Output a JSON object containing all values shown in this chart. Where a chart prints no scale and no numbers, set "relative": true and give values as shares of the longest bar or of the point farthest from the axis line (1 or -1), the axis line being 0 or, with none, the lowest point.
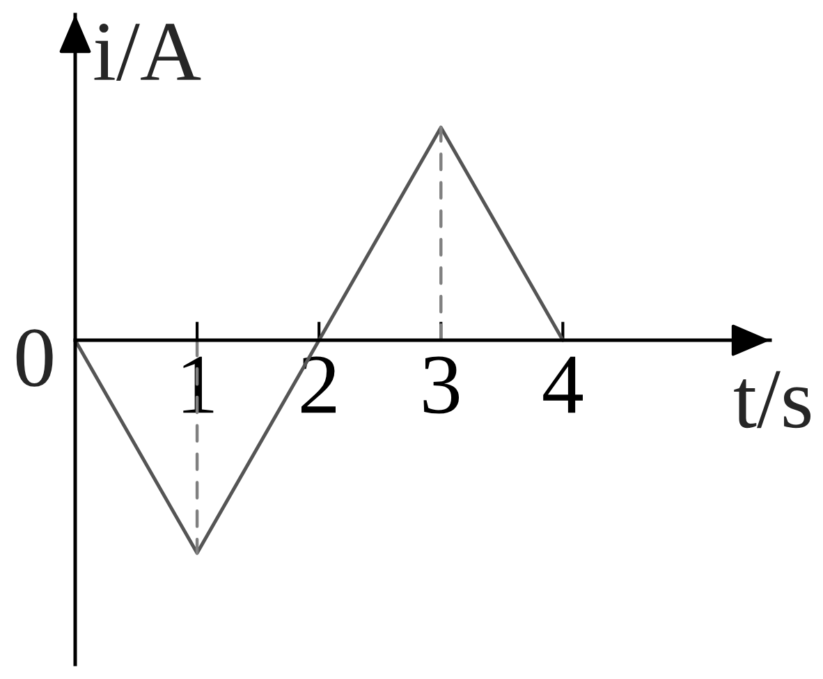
{
  "chart_data": {
    "type": "line",
    "relative": true,
    "xlabel": "t/s",
    "ylabel": "i/A",
    "xlim": [
      0,
      5.7
    ],
    "xticks": [
      1,
      2,
      3,
      4
    ],
    "tick_labels": "x",
    "annotations": [
      {
        "text": "0",
        "x": 0,
        "y": 0
      }
    ],
    "series": [
      {
        "color": "#555555",
        "x": [
          0,
          1,
          2,
          3,
          4
        ],
        "values": [
          0,
          -1,
          0,
          1,
          0
        ]
      },
      {
        "color": "#808080",
        "x": [
          1,
          1
        ],
        "values": [
          0,
          -1
        ],
        "line_style": "dashed"
      },
      {
        "color": "#808080",
        "x": [
          3,
          3
        ],
        "values": [
          0,
          1
        ],
        "line_style": "dashed"
      }
    ]
  }
}
